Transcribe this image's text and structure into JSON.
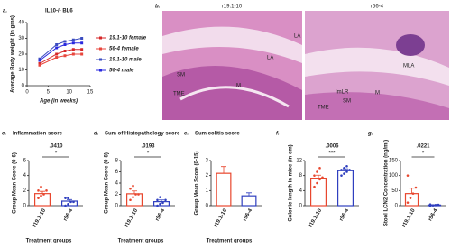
{
  "chart_data": [
    {
      "panel": "a.",
      "type": "line",
      "title": "IL10-/- BL6",
      "xlabel": "Age (in weeks)",
      "ylabel": "Average Body weight (in gms)",
      "x": [
        3,
        7,
        9,
        11,
        13
      ],
      "xlim": [
        0,
        15
      ],
      "xticks": [
        0,
        5,
        10,
        15
      ],
      "ylim": [
        0,
        40
      ],
      "yticks": [
        0,
        10,
        20,
        30,
        40
      ],
      "series": [
        {
          "name": "19.1-10 female",
          "color": "#d62728",
          "values": [
            14,
            20,
            22,
            23,
            23
          ]
        },
        {
          "name": "56-4 female",
          "color": "#e8463c",
          "values": [
            13,
            18,
            19,
            20,
            20
          ]
        },
        {
          "name": "19.1-10 male",
          "color": "#3b4cc0",
          "values": [
            17,
            26,
            28,
            29,
            30
          ]
        },
        {
          "name": "56-4 male",
          "color": "#2a2adf",
          "values": [
            16,
            24,
            26,
            27,
            27
          ]
        }
      ]
    },
    {
      "panel": "c.",
      "type": "bar",
      "title": "Inflammation score",
      "ylabel": "Group Mean Score (0-6)",
      "xlabel": "Treatment groups",
      "categories": [
        "r19.1-10",
        "r56-4"
      ],
      "values": [
        1.6,
        0.6
      ],
      "errors": [
        0.3,
        0.2
      ],
      "colors": [
        "#e8472e",
        "#2f3fbf"
      ],
      "points": [
        [
          1,
          1.3,
          1.5,
          2,
          2,
          2.5
        ],
        [
          0,
          0.2,
          0.5,
          0.5,
          1,
          1
        ]
      ],
      "ylim": [
        0,
        6
      ],
      "yticks": [
        0,
        2,
        4,
        6
      ],
      "p_value": ".0410",
      "significance": "*"
    },
    {
      "panel": "d.",
      "type": "bar",
      "title": "Sum of Histopathology score",
      "ylabel": "Group Mean Score (0-8)",
      "xlabel": "Treatment groups",
      "categories": [
        "r19.1-10",
        "r56-4"
      ],
      "values": [
        2.1,
        0.7
      ],
      "errors": [
        0.5,
        0.3
      ],
      "colors": [
        "#e8472e",
        "#2f3fbf"
      ],
      "points": [
        [
          1,
          1.5,
          2,
          2,
          3,
          3.5
        ],
        [
          0,
          0.3,
          0.5,
          1,
          1,
          1.5
        ]
      ],
      "ylim": [
        0,
        8
      ],
      "yticks": [
        0,
        2,
        4,
        6,
        8
      ],
      "p_value": ".0193",
      "significance": "*"
    },
    {
      "panel": "e.",
      "type": "bar",
      "title": "Sum colitis score",
      "ylabel": "Group Mean Score (0-15)",
      "xlabel": "Treatment groups",
      "categories": [
        "r19.1-10",
        "r56-4"
      ],
      "values": [
        2.15,
        0.65
      ],
      "errors": [
        0.45,
        0.2
      ],
      "colors": [
        "#e8472e",
        "#2f3fbf"
      ],
      "ylim": [
        0,
        3
      ],
      "yticks": [
        0,
        1,
        2,
        3
      ]
    },
    {
      "panel": "f.",
      "type": "bar",
      "ylabel": "Colonic length in mice (in cm)",
      "categories": [
        "r19.1-10",
        "r56-4"
      ],
      "values": [
        7.3,
        9.3
      ],
      "errors": [
        0.8,
        0.5
      ],
      "colors": [
        "#e8472e",
        "#2f3fbf"
      ],
      "points": [
        [
          5,
          6,
          7,
          7.5,
          8,
          9,
          10
        ],
        [
          8,
          8.5,
          9,
          9.5,
          9.5,
          10,
          10.5
        ]
      ],
      "ylim": [
        0,
        12
      ],
      "yticks": [
        0,
        4,
        8,
        12
      ],
      "p_value": ".0006",
      "significance": "***"
    },
    {
      "panel": "g.",
      "type": "bar",
      "ylabel": "Stool LCN2 Concentration (ng/ml)",
      "categories": [
        "r19.1-10",
        "r56-4"
      ],
      "values": [
        40,
        2
      ],
      "errors": [
        18,
        1
      ],
      "colors": [
        "#e8472e",
        "#2f3fbf"
      ],
      "points": [
        [
          10,
          25,
          40,
          60,
          100
        ],
        [
          0,
          1,
          2,
          3,
          4
        ]
      ],
      "ylim": [
        0,
        150
      ],
      "yticks": [
        0,
        50,
        100,
        150
      ],
      "p_value": ".0221",
      "significance": "*"
    }
  ],
  "histology": {
    "panel": "b.",
    "left_title": "r19.1-10",
    "right_title": "r56-4",
    "left_labels": [
      "LA",
      "LA",
      "SM",
      "TME",
      "M"
    ],
    "right_labels": [
      "MLA",
      "ImLR",
      "SM",
      "M",
      "TME"
    ]
  }
}
